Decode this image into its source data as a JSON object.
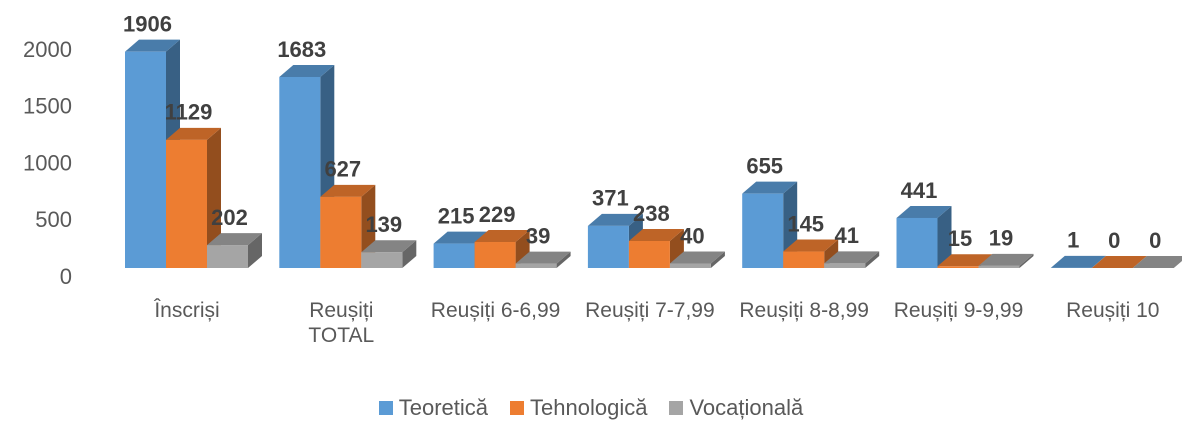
{
  "chart_data": {
    "type": "bar3d",
    "categories": [
      "Înscriși",
      "Reușiți TOTAL",
      "Reușiți 6-6,99",
      "Reușiți 7-7,99",
      "Reușiți 8-8,99",
      "Reușiți 9-9,99",
      "Reușiți 10"
    ],
    "series": [
      {
        "name": "Teoretică",
        "color": "#5b9bd5",
        "values": [
          1906,
          1683,
          215,
          371,
          655,
          441,
          1
        ]
      },
      {
        "name": "Tehnologică",
        "color": "#ed7d31",
        "values": [
          1129,
          627,
          229,
          238,
          145,
          15,
          0
        ]
      },
      {
        "name": "Vocațională",
        "color": "#a5a5a5",
        "values": [
          202,
          139,
          39,
          40,
          41,
          19,
          0
        ]
      }
    ],
    "ylim": [
      0,
      2000
    ],
    "yticks": [
      0,
      500,
      1000,
      1500,
      2000
    ],
    "grid": false,
    "legend": "bottom"
  }
}
